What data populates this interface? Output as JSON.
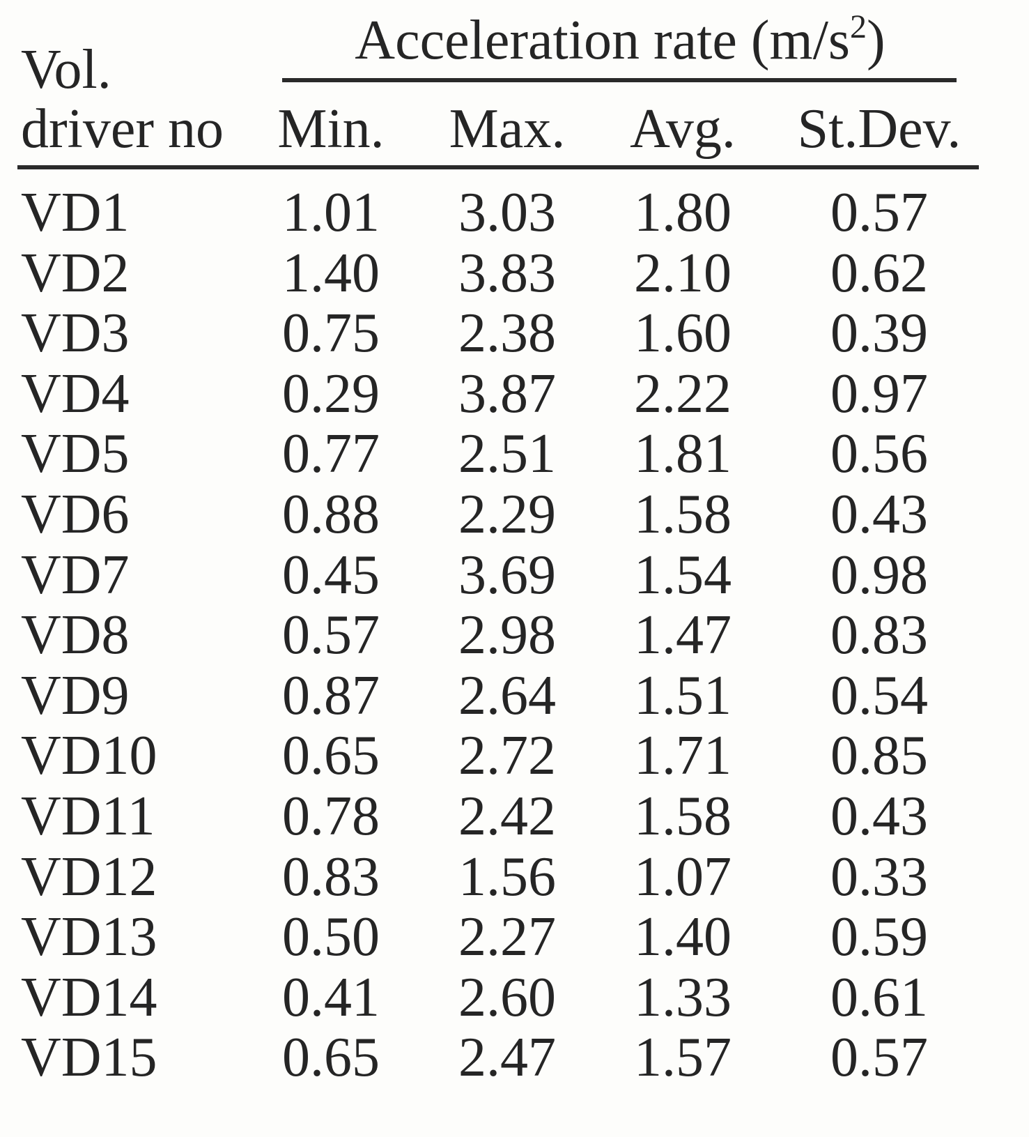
{
  "table": {
    "group_header": {
      "text": "Acceleration rate (m/s",
      "superscript": "2",
      "close": ")"
    },
    "row_header": [
      "Vol.",
      "driver no"
    ],
    "columns": [
      "Min.",
      "Max.",
      "Avg.",
      "St.Dev."
    ],
    "rows": [
      [
        "VD1",
        "1.01",
        "3.03",
        "1.80",
        "0.57"
      ],
      [
        "VD2",
        "1.40",
        "3.83",
        "2.10",
        "0.62"
      ],
      [
        "VD3",
        "0.75",
        "2.38",
        "1.60",
        "0.39"
      ],
      [
        "VD4",
        "0.29",
        "3.87",
        "2.22",
        "0.97"
      ],
      [
        "VD5",
        "0.77",
        "2.51",
        "1.81",
        "0.56"
      ],
      [
        "VD6",
        "0.88",
        "2.29",
        "1.58",
        "0.43"
      ],
      [
        "VD7",
        "0.45",
        "3.69",
        "1.54",
        "0.98"
      ],
      [
        "VD8",
        "0.57",
        "2.98",
        "1.47",
        "0.83"
      ],
      [
        "VD9",
        "0.87",
        "2.64",
        "1.51",
        "0.54"
      ],
      [
        "VD10",
        "0.65",
        "2.72",
        "1.71",
        "0.85"
      ],
      [
        "VD11",
        "0.78",
        "2.42",
        "1.58",
        "0.43"
      ],
      [
        "VD12",
        "0.83",
        "1.56",
        "1.07",
        "0.33"
      ],
      [
        "VD13",
        "0.50",
        "2.27",
        "1.40",
        "0.59"
      ],
      [
        "VD14",
        "0.41",
        "2.60",
        "1.33",
        "0.61"
      ],
      [
        "VD15",
        "0.65",
        "2.47",
        "1.57",
        "0.57"
      ]
    ]
  }
}
